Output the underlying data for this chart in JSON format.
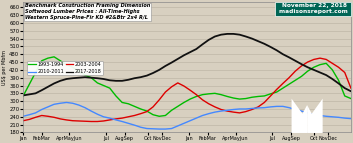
{
  "title_line1": "Benchmark Construction Framing Dimension",
  "title_line2": "Softwood Lumber Prices : All-Time-Highs",
  "title_line3": "Western Spruce-Pine-Fir KD #2&Btr 2x4 R/L",
  "date_label": "November 22, 2018",
  "website": "madisonsreport.com",
  "ylabel": "US$ per Mbfm",
  "ylim": [
    180,
    680
  ],
  "yticks": [
    180,
    210,
    240,
    270,
    300,
    330,
    360,
    390,
    420,
    450,
    480,
    510,
    540,
    570,
    600,
    630,
    660
  ],
  "bg_color": "#d8d0c0",
  "plot_bg": "#d8d0c0",
  "grid_color": "#b8b0a0",
  "date_box_color": "#006655",
  "date_text_color": "#ffffff",
  "logo_color": "#006655",
  "series": [
    {
      "label": "1993-1994",
      "color": "#00bb00",
      "linewidth": 1.0,
      "data_y": [
        320,
        365,
        410,
        455,
        465,
        470,
        455,
        440,
        430,
        415,
        400,
        390,
        370,
        360,
        350,
        320,
        295,
        290,
        280,
        270,
        262,
        248,
        242,
        245,
        265,
        280,
        295,
        308,
        318,
        325,
        328,
        330,
        325,
        318,
        312,
        308,
        310,
        315,
        318,
        320,
        328,
        335,
        350,
        365,
        380,
        395,
        415,
        430,
        440,
        445,
        420,
        380,
        320,
        310
      ]
    },
    {
      "label": "2003-2004",
      "color": "#dd0000",
      "linewidth": 1.0,
      "data_y": [
        225,
        230,
        238,
        245,
        242,
        238,
        232,
        228,
        225,
        224,
        223,
        222,
        222,
        224,
        228,
        232,
        235,
        240,
        245,
        252,
        260,
        278,
        305,
        335,
        355,
        370,
        358,
        342,
        325,
        305,
        290,
        278,
        268,
        262,
        258,
        255,
        260,
        268,
        278,
        295,
        320,
        345,
        368,
        390,
        415,
        435,
        450,
        460,
        465,
        460,
        445,
        430,
        410,
        350
      ]
    },
    {
      "label": "2010-2011",
      "color": "#4488ff",
      "linewidth": 1.0,
      "data_y": [
        242,
        248,
        255,
        268,
        278,
        288,
        292,
        295,
        292,
        285,
        275,
        262,
        250,
        240,
        235,
        228,
        222,
        215,
        208,
        200,
        195,
        194,
        193,
        193,
        195,
        205,
        215,
        225,
        235,
        245,
        252,
        258,
        262,
        265,
        268,
        270,
        270,
        272,
        274,
        275,
        278,
        280,
        280,
        275,
        268,
        262,
        255,
        248,
        245,
        242,
        240,
        238,
        235,
        233
      ]
    },
    {
      "label": "2017-2018",
      "color": "#111111",
      "linewidth": 1.3,
      "data_y": [
        322,
        326,
        330,
        342,
        355,
        368,
        378,
        385,
        388,
        390,
        392,
        390,
        388,
        385,
        380,
        378,
        378,
        382,
        388,
        392,
        398,
        408,
        420,
        435,
        448,
        462,
        476,
        488,
        500,
        518,
        535,
        548,
        555,
        558,
        558,
        555,
        548,
        540,
        530,
        520,
        508,
        495,
        480,
        468,
        455,
        442,
        430,
        420,
        410,
        400,
        385,
        368,
        350,
        338
      ]
    }
  ],
  "x_tick_labels": [
    "Jan",
    "FebMar",
    "AprMayJun",
    "Jul",
    "AugSep",
    "Oct",
    "NovDec",
    "Jan",
    "FebMar",
    "AprMayJun",
    "Jul",
    "AugSep",
    "Oct",
    "NovDec"
  ],
  "x_tick_pos": [
    0,
    4,
    10,
    18,
    22,
    27,
    30,
    36,
    40,
    46,
    54,
    58,
    63,
    66
  ]
}
